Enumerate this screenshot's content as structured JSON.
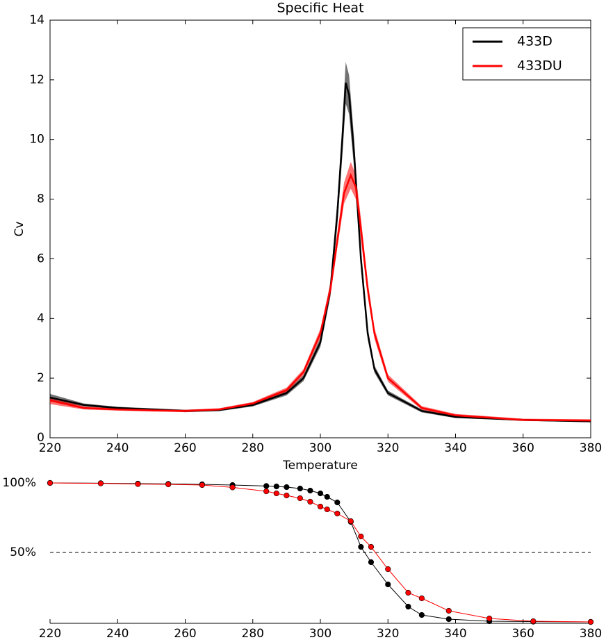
{
  "chart_data": [
    {
      "type": "line",
      "title": "Specific Heat",
      "xlabel": "Temperature",
      "ylabel": "Cv",
      "xlim": [
        220,
        380
      ],
      "ylim": [
        0,
        14
      ],
      "xticks": [
        220,
        240,
        260,
        280,
        300,
        320,
        340,
        360,
        380
      ],
      "yticks": [
        0,
        2,
        4,
        6,
        8,
        10,
        12,
        14
      ],
      "legend": "upper right",
      "band": true,
      "series": [
        {
          "name": "433D",
          "color": "#000000",
          "x": [
            220,
            230,
            240,
            250,
            260,
            270,
            280,
            290,
            295,
            300,
            303,
            305,
            306.5,
            307.5,
            308.5,
            310,
            312,
            314,
            316,
            320,
            330,
            340,
            360,
            380
          ],
          "values": [
            1.35,
            1.1,
            1.0,
            0.95,
            0.9,
            0.93,
            1.1,
            1.5,
            2.0,
            3.2,
            5.0,
            7.5,
            10.0,
            11.9,
            11.5,
            9.5,
            6.0,
            3.5,
            2.3,
            1.5,
            0.9,
            0.7,
            0.6,
            0.55
          ],
          "errors": [
            0.12,
            0.05,
            0.04,
            0.04,
            0.04,
            0.04,
            0.05,
            0.08,
            0.1,
            0.15,
            0.25,
            0.4,
            0.55,
            0.7,
            0.65,
            0.5,
            0.3,
            0.2,
            0.12,
            0.08,
            0.05,
            0.04,
            0.03,
            0.03
          ]
        },
        {
          "name": "433DU",
          "color": "#ff0000",
          "x": [
            220,
            230,
            240,
            250,
            260,
            270,
            280,
            290,
            295,
            300,
            303,
            305,
            307,
            309,
            310.5,
            312,
            314,
            316,
            320,
            330,
            340,
            360,
            380
          ],
          "values": [
            1.25,
            1.0,
            0.95,
            0.92,
            0.9,
            0.95,
            1.15,
            1.6,
            2.2,
            3.5,
            5.0,
            6.6,
            8.2,
            8.8,
            8.4,
            7.0,
            5.0,
            3.5,
            2.0,
            1.0,
            0.75,
            0.6,
            0.58
          ],
          "errors": [
            0.12,
            0.05,
            0.04,
            0.04,
            0.04,
            0.04,
            0.05,
            0.08,
            0.1,
            0.15,
            0.2,
            0.25,
            0.35,
            0.45,
            0.4,
            0.35,
            0.25,
            0.18,
            0.12,
            0.06,
            0.05,
            0.04,
            0.04
          ]
        }
      ]
    },
    {
      "type": "line",
      "markers": true,
      "reference_line": 50,
      "xlim": [
        220,
        380
      ],
      "ylim": [
        0,
        100
      ],
      "xticks": [
        220,
        240,
        260,
        280,
        300,
        320,
        340,
        360,
        380
      ],
      "yticks": [
        {
          "value": 50,
          "label": "50%"
        },
        {
          "value": 100,
          "label": "100%"
        }
      ],
      "series": [
        {
          "color": "#000000",
          "x": [
            220,
            235,
            246,
            255,
            265,
            274,
            284,
            287,
            290,
            294,
            297,
            300,
            302,
            305,
            309,
            312,
            315,
            320,
            326,
            330,
            338,
            350,
            363,
            380
          ],
          "values": [
            100,
            99.8,
            99.5,
            99.3,
            99,
            98.5,
            97.8,
            97.5,
            97,
            96,
            94.5,
            92.5,
            90,
            86,
            72,
            54,
            43,
            27,
            11,
            5,
            2,
            0.5,
            0.2,
            0
          ]
        },
        {
          "color": "#ff0000",
          "x": [
            220,
            235,
            246,
            255,
            265,
            274,
            284,
            287,
            290,
            294,
            297,
            300,
            302,
            305,
            309,
            312,
            315,
            320,
            326,
            330,
            338,
            350,
            363,
            380
          ],
          "values": [
            100,
            99.7,
            99.2,
            99,
            98.5,
            96.8,
            94,
            92.5,
            91,
            89,
            86.5,
            83,
            81,
            78,
            72.5,
            61.5,
            54,
            38,
            21,
            17,
            8,
            2.5,
            0.5,
            0
          ]
        }
      ]
    }
  ]
}
